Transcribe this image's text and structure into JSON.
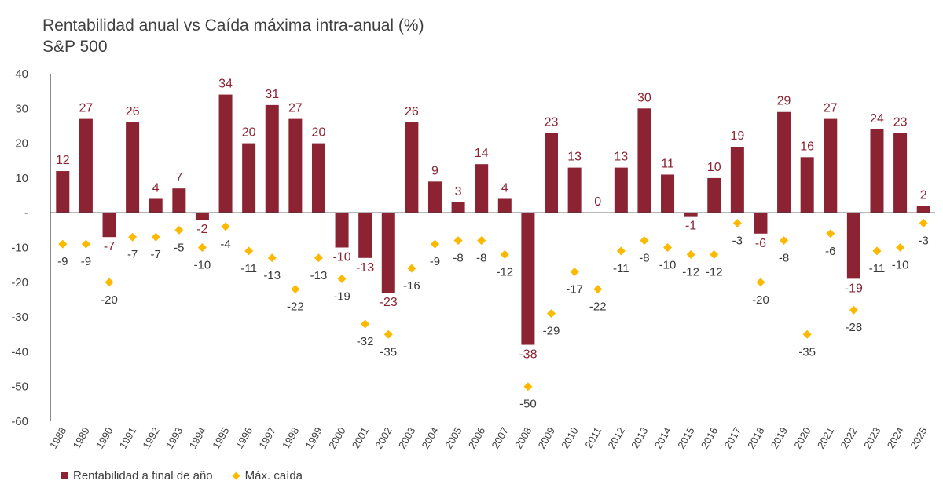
{
  "header": {
    "title": "Rentabilidad anual vs Caída máxima intra-anual (%)",
    "subtitle": "S&P 500"
  },
  "legend": {
    "bar_label": "Rentabilidad a final de año",
    "diamond_label": "Máx. caída"
  },
  "colors": {
    "bar": "#8b2332",
    "diamond": "#fcb900",
    "bar_label": "#8b2332",
    "diamond_label": "#3a3a3a"
  },
  "chart_data": {
    "type": "bar",
    "title": "Rentabilidad anual vs Caída máxima intra-anual (%)",
    "subtitle": "S&P 500",
    "categories": [
      "1988",
      "1989",
      "1990",
      "1991",
      "1992",
      "1993",
      "1994",
      "1995",
      "1996",
      "1997",
      "1998",
      "1999",
      "2000",
      "2001",
      "2002",
      "2003",
      "2004",
      "2005",
      "2006",
      "2007",
      "2008",
      "2009",
      "2010",
      "2011",
      "2012",
      "2013",
      "2014",
      "2015",
      "2016",
      "2017",
      "2018",
      "2019",
      "2020",
      "2021",
      "2022",
      "2023",
      "2024",
      "2025"
    ],
    "yticks": [
      "40",
      "30",
      "20",
      "10",
      "-",
      "-10",
      "-20",
      "-30",
      "-40",
      "-50",
      "-60"
    ],
    "ytick_values": [
      40,
      30,
      20,
      10,
      0,
      -10,
      -20,
      -30,
      -40,
      -50,
      -60
    ],
    "ylim": [
      -60,
      40
    ],
    "grid": false,
    "legend_position": "bottom-left",
    "series": [
      {
        "name": "Rentabilidad a final de año",
        "type": "bar",
        "values": [
          12,
          27,
          -7,
          26,
          4,
          7,
          -2,
          34,
          20,
          31,
          27,
          20,
          -10,
          -13,
          -23,
          26,
          9,
          3,
          14,
          4,
          -38,
          23,
          13,
          0,
          13,
          30,
          11,
          -1,
          10,
          19,
          -6,
          29,
          16,
          27,
          -19,
          24,
          23,
          2
        ],
        "labels": [
          "12",
          "27",
          "-7",
          "26",
          "4",
          "7",
          "-2",
          "34",
          "20",
          "31",
          "27",
          "20",
          "-10",
          "-13",
          "-23",
          "26",
          "9",
          "3",
          "14",
          "4",
          "-38",
          "23",
          "13",
          "0",
          "13",
          "30",
          "11",
          "-1",
          "10",
          "19",
          "-6",
          "29",
          "16",
          "27",
          "-19",
          "24",
          "23",
          "2"
        ]
      },
      {
        "name": "Máx. caída",
        "type": "scatter",
        "values": [
          -9,
          -9,
          -20,
          -7,
          -7,
          -5,
          -10,
          -4,
          -11,
          -13,
          -22,
          -13,
          -19,
          -32,
          -35,
          -16,
          -9,
          -8,
          -8,
          -12,
          -50,
          -29,
          -17,
          -22,
          -11,
          -8,
          -10,
          -12,
          -12,
          -3,
          -20,
          -8,
          -35,
          -6,
          -28,
          -11,
          -10,
          -3
        ],
        "labels": [
          "-9",
          "-9",
          "-20",
          "-7",
          "-7",
          "-5",
          "-10",
          "-4",
          "-11",
          "-13",
          "-22",
          "-13",
          "-19",
          "-32",
          "-35",
          "-16",
          "-9",
          "-8",
          "-8",
          "-12",
          "-50",
          "-29",
          "-17",
          "-22",
          "-11",
          "-8",
          "-10",
          "-12",
          "-12",
          "-3",
          "-20",
          "-8",
          "-35",
          "-6",
          "-28",
          "-11",
          "-10",
          "-3"
        ]
      }
    ]
  }
}
